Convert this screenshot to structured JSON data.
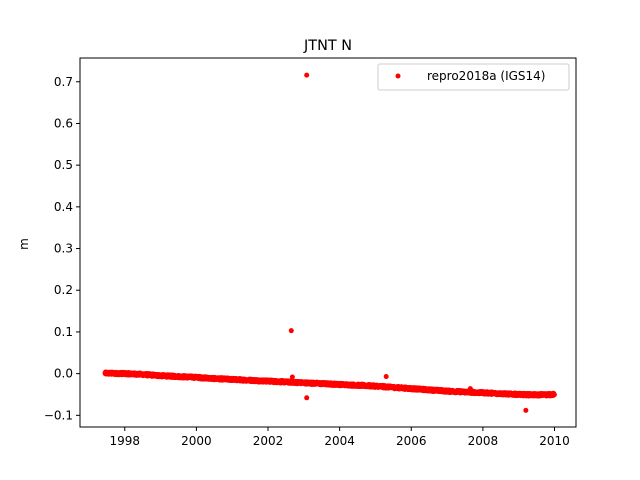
{
  "chart_data": {
    "type": "scatter",
    "title": "JTNT N",
    "xlabel": "",
    "ylabel": "m",
    "xlim": [
      1996.75,
      2010.6
    ],
    "ylim": [
      -0.128,
      0.757
    ],
    "x_ticks": [
      1998,
      2000,
      2002,
      2004,
      2006,
      2008,
      2010
    ],
    "y_ticks": [
      -0.1,
      0.0,
      0.1,
      0.2,
      0.3,
      0.4,
      0.5,
      0.6,
      0.7
    ],
    "y_tick_labels": [
      "−0.1",
      "0.0",
      "0.1",
      "0.2",
      "0.3",
      "0.4",
      "0.5",
      "0.6",
      "0.7"
    ],
    "grid": false,
    "legend_position": "top-right",
    "series": [
      {
        "name": "repro2018a (IGS14)",
        "color": "#ff0000",
        "marker": "circle",
        "trend": {
          "x": [
            1997.45,
            1998.0,
            1998.5,
            1999.0,
            1999.5,
            2000.0,
            2000.5,
            2001.0,
            2001.5,
            2002.0,
            2002.5,
            2003.0,
            2003.5,
            2004.0,
            2004.5,
            2005.0,
            2005.5,
            2006.0,
            2006.5,
            2007.0,
            2007.5,
            2008.0,
            2008.5,
            2009.0,
            2009.5,
            2010.0
          ],
          "y": [
            0.001,
            0.0,
            -0.002,
            -0.005,
            -0.007,
            -0.009,
            -0.012,
            -0.014,
            -0.016,
            -0.018,
            -0.02,
            -0.022,
            -0.024,
            -0.026,
            -0.028,
            -0.03,
            -0.033,
            -0.036,
            -0.039,
            -0.042,
            -0.044,
            -0.046,
            -0.048,
            -0.05,
            -0.051,
            -0.05
          ],
          "noise_m": 0.003,
          "spacing_years": 0.0055
        },
        "outliers": [
          {
            "x": 2003.08,
            "y": 0.716
          },
          {
            "x": 2002.65,
            "y": 0.103
          },
          {
            "x": 2002.68,
            "y": -0.008
          },
          {
            "x": 2003.08,
            "y": -0.058
          },
          {
            "x": 2005.3,
            "y": -0.007
          },
          {
            "x": 2007.65,
            "y": -0.036
          },
          {
            "x": 2009.2,
            "y": -0.088
          }
        ]
      }
    ]
  }
}
